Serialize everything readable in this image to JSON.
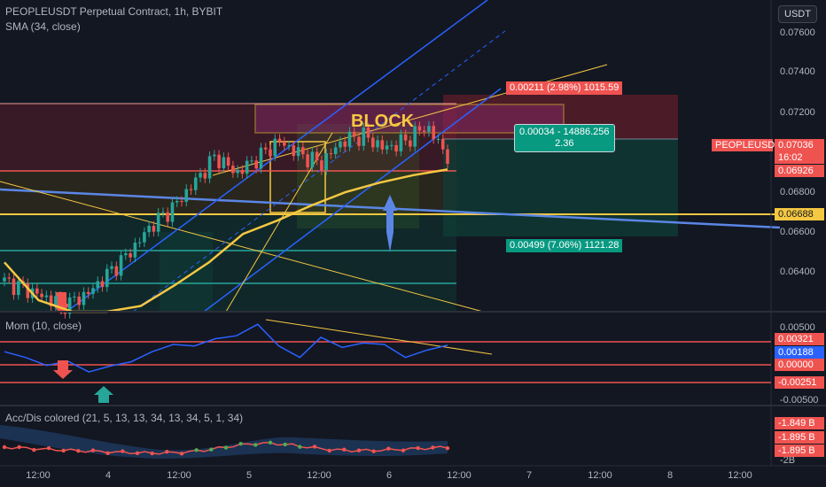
{
  "header": {
    "symbol": "PEOPLEUSDT Perpetual Contract, 1h, BYBIT",
    "indicator": "SMA (34, close)",
    "currency_button": "USDT"
  },
  "colors": {
    "background": "#131722",
    "up": "#26a69a",
    "down": "#ef5350",
    "sma": "#f5c842",
    "channel": "#2962ff",
    "red_line": "#ef5350",
    "green_line": "#26a69a"
  },
  "chart_data": [
    {
      "type": "candlestick",
      "title": "PEOPLEUSDT Perpetual Contract, 1h, BYBIT",
      "yaxis": {
        "ticks": [
          "0.07600",
          "0.07400",
          "0.07200",
          "0.06800",
          "0.06600",
          "0.06400"
        ],
        "range": [
          0.0622,
          0.0777
        ]
      },
      "xaxis": {
        "ticks": [
          "12:00",
          "4",
          "12:00",
          "5",
          "12:00",
          "6",
          "12:00",
          "7",
          "12:00",
          "8",
          "12:00"
        ]
      },
      "close_samples": [
        0.0638,
        0.0634,
        0.0629,
        0.0626,
        0.0632,
        0.0643,
        0.0654,
        0.0668,
        0.0677,
        0.069,
        0.0704,
        0.0695,
        0.0703,
        0.0712,
        0.0705,
        0.07,
        0.0712,
        0.0715,
        0.0708,
        0.0712,
        0.072,
        0.0704
      ],
      "sma_samples": [
        0.0648,
        0.0628,
        0.0622,
        0.0622,
        0.0625,
        0.0636,
        0.0648,
        0.0663,
        0.067,
        0.0678,
        0.0685,
        0.069,
        0.0694,
        0.0697
      ],
      "price_tags": [
        {
          "label": "PEOPLEUSDT.P",
          "value": "0.07036",
          "countdown": "16:02"
        },
        {
          "value": "0.06926"
        },
        {
          "value": "0.06688"
        }
      ],
      "annotations": {
        "block": "BLOCK",
        "target": "0.00211 (2.98%) 1015.59",
        "stop": "0.00499 (7.06%) 1121.28",
        "range_line1": "0.00034 - 14886.256",
        "range_line2": "2.36"
      }
    },
    {
      "type": "line",
      "title": "Mom (10, close)",
      "yaxis": {
        "ticks": [
          "0.00500",
          "0.00000",
          "-0.00500"
        ]
      },
      "values": [
        0.001,
        0.0002,
        -0.0009,
        -0.0003,
        -0.0018,
        -0.001,
        -0.0004,
        0.001,
        0.002,
        0.0018,
        0.0028,
        0.0032,
        0.0048,
        0.0018,
        0.0002,
        0.003,
        0.0016,
        0.0022,
        0.002,
        0.0002,
        0.0012,
        0.0019
      ],
      "price_tags": [
        "0.00321",
        "0.00188",
        "0.00000",
        "-0.00251"
      ]
    },
    {
      "type": "line",
      "title": "Acc/Dis colored (21, 5, 13, 13, 34, 13, 34, 5, 1, 34)",
      "yaxis": {
        "ticks": [
          "-2B"
        ]
      },
      "price_tags": [
        "-1.849 B",
        "-1.895 B",
        "-1.895 B"
      ]
    }
  ]
}
